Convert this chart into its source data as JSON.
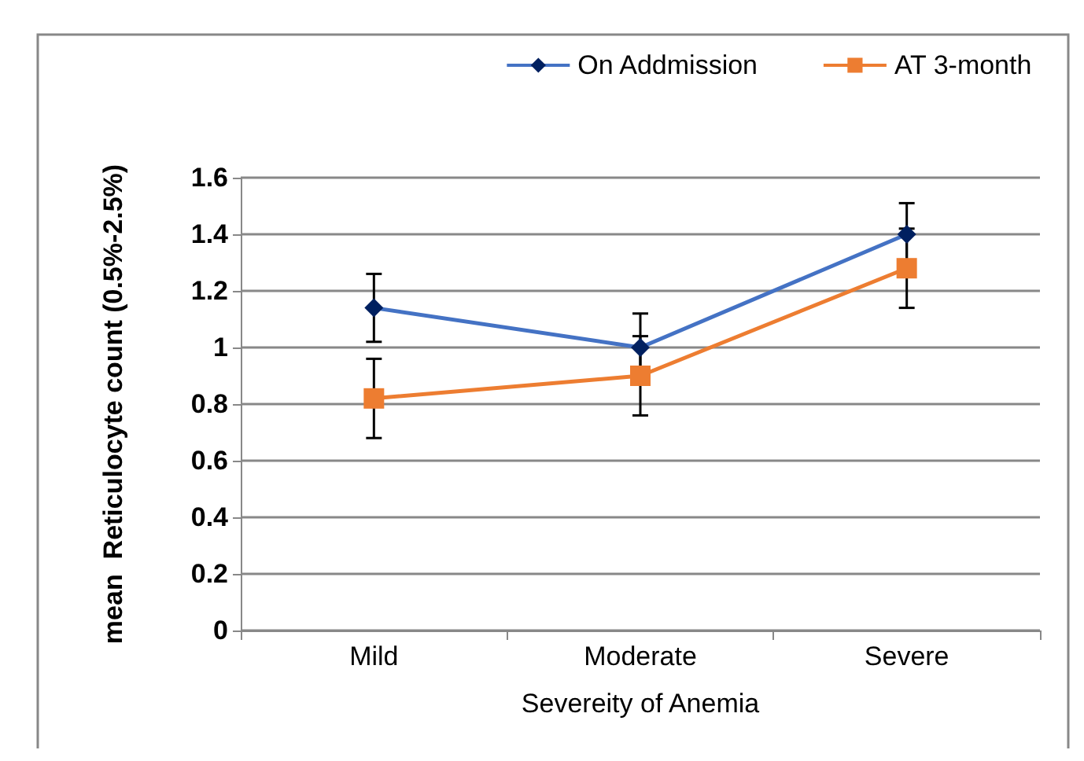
{
  "chart_data": {
    "type": "line",
    "xlabel": "Severeity of Anemia",
    "ylabel": "mean  Reticulocyte count (0.5%-2.5%)",
    "categories": [
      "Mild",
      "Moderate",
      "Severe"
    ],
    "series": [
      {
        "name": "On Addmission",
        "color": "#4472c4",
        "marker": "diamond",
        "values": [
          1.14,
          1.0,
          1.4
        ],
        "errors": [
          0.12,
          0.12,
          0.11
        ]
      },
      {
        "name": "AT 3-month",
        "color": "#ed7d31",
        "marker": "square",
        "values": [
          0.82,
          0.9,
          1.28
        ],
        "errors": [
          0.14,
          0.14,
          0.14
        ]
      }
    ],
    "ylim": [
      0,
      1.6
    ],
    "yticks": [
      0,
      0.2,
      0.4,
      0.6,
      0.8,
      1,
      1.2,
      1.4,
      1.6
    ],
    "grid": "y",
    "legend": "top right"
  }
}
